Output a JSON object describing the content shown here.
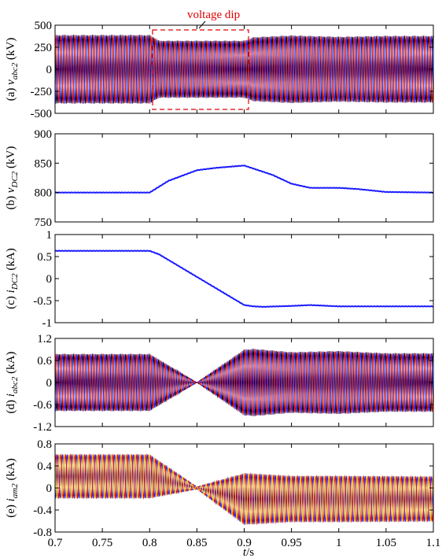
{
  "figure": {
    "xlabel": "t/s",
    "x_ticks": [
      "0.7",
      "0.75",
      "0.8",
      "0.85",
      "0.9",
      "0.95",
      "1",
      "1.05",
      "1.1"
    ],
    "annotation": "voltage dip",
    "colors": {
      "phase_a": "#e00000",
      "phase_b": "#1a1aff",
      "phase_c": "#000000",
      "dc": "#1a1aff",
      "arm_c": "#e0b000",
      "dip_box": "#e00000"
    }
  },
  "chart_data": [
    {
      "type": "line",
      "panel": "(a)",
      "ylabel": "(a) v_abc2 (kV)",
      "ylabel_main": "v",
      "ylabel_sub": "abc2",
      "ylabel_tail": " (kV)",
      "ylim": [
        -500,
        500
      ],
      "y_ticks": [
        "500",
        "250",
        "0",
        "-250",
        "-500"
      ],
      "xlim": [
        0.7,
        1.1
      ],
      "signal": "three-phase AC, 50 Hz",
      "envelope_x": [
        0.7,
        0.8,
        0.81,
        0.9,
        0.91,
        0.95,
        1.0,
        1.05,
        1.1
      ],
      "envelope_amp": [
        390,
        390,
        325,
        325,
        365,
        385,
        370,
        380,
        380
      ],
      "series": [
        {
          "name": "a",
          "values": []
        },
        {
          "name": "b",
          "values": []
        },
        {
          "name": "c",
          "values": []
        }
      ]
    },
    {
      "type": "line",
      "panel": "(b)",
      "ylabel": "(b) v_DC2 (kV)",
      "ylabel_main": "v",
      "ylabel_sub": "DC2",
      "ylabel_tail": " (kV)",
      "ylim": [
        750,
        900
      ],
      "y_ticks": [
        "900",
        "850",
        "800",
        "750"
      ],
      "xlim": [
        0.7,
        1.1
      ],
      "x": [
        0.7,
        0.8,
        0.82,
        0.85,
        0.87,
        0.9,
        0.93,
        0.95,
        0.97,
        1.0,
        1.02,
        1.05,
        1.1
      ],
      "y": [
        800,
        800,
        820,
        838,
        842,
        846,
        830,
        815,
        808,
        808,
        806,
        801,
        800
      ]
    },
    {
      "type": "line",
      "panel": "(c)",
      "ylabel": "(c) i_DC2 (kA)",
      "ylabel_main": "i",
      "ylabel_sub": "DC2",
      "ylabel_tail": " (kA)",
      "ylim": [
        -1,
        1
      ],
      "y_ticks": [
        "1",
        "0.5",
        "0",
        "-0.5",
        "-1"
      ],
      "xlim": [
        0.7,
        1.1
      ],
      "x": [
        0.7,
        0.8,
        0.81,
        0.9,
        0.91,
        0.92,
        0.95,
        0.97,
        1.0,
        1.05,
        1.1
      ],
      "y": [
        0.63,
        0.63,
        0.55,
        -0.6,
        -0.63,
        -0.64,
        -0.62,
        -0.6,
        -0.63,
        -0.63,
        -0.63
      ]
    },
    {
      "type": "line",
      "panel": "(d)",
      "ylabel": "(d) i_abc2 (kA)",
      "ylabel_main": "i",
      "ylabel_sub": "abc2",
      "ylabel_tail": " (kA)",
      "ylim": [
        -1.2,
        1.2
      ],
      "y_ticks": [
        "1.2",
        "0.6",
        "0",
        "-0.6",
        "-1.2"
      ],
      "xlim": [
        0.7,
        1.1
      ],
      "signal": "three-phase AC, 50 Hz",
      "envelope_x": [
        0.7,
        0.8,
        0.85,
        0.9,
        0.91,
        0.95,
        1.0,
        1.05,
        1.1
      ],
      "envelope_amp": [
        0.78,
        0.78,
        0.0,
        0.9,
        0.92,
        0.83,
        0.86,
        0.8,
        0.8
      ],
      "series": [
        {
          "name": "a",
          "values": []
        },
        {
          "name": "b",
          "values": []
        },
        {
          "name": "c",
          "values": []
        }
      ]
    },
    {
      "type": "line",
      "panel": "(e)",
      "ylabel": "(e) i_am2 (kA)",
      "ylabel_main": "i",
      "ylabel_sub": "am2",
      "ylabel_tail": " (kA)",
      "ylim": [
        -0.8,
        0.8
      ],
      "y_ticks": [
        "0.8",
        "0.4",
        "0",
        "-0.4",
        "-0.8"
      ],
      "xlim": [
        0.7,
        1.1
      ],
      "signal": "arm current, AC + DC offset, 50 Hz",
      "offset_x": [
        0.7,
        0.8,
        0.85,
        0.9,
        0.95,
        1.0,
        1.1
      ],
      "offset_y": [
        0.21,
        0.21,
        0.0,
        -0.2,
        -0.2,
        -0.2,
        -0.2
      ],
      "envelope_x": [
        0.7,
        0.8,
        0.85,
        0.9,
        0.95,
        1.0,
        1.1
      ],
      "envelope_amp": [
        0.4,
        0.4,
        0.02,
        0.47,
        0.42,
        0.42,
        0.41
      ],
      "series": [
        {
          "name": "a",
          "values": []
        },
        {
          "name": "b",
          "values": []
        },
        {
          "name": "c",
          "values": []
        }
      ]
    }
  ]
}
